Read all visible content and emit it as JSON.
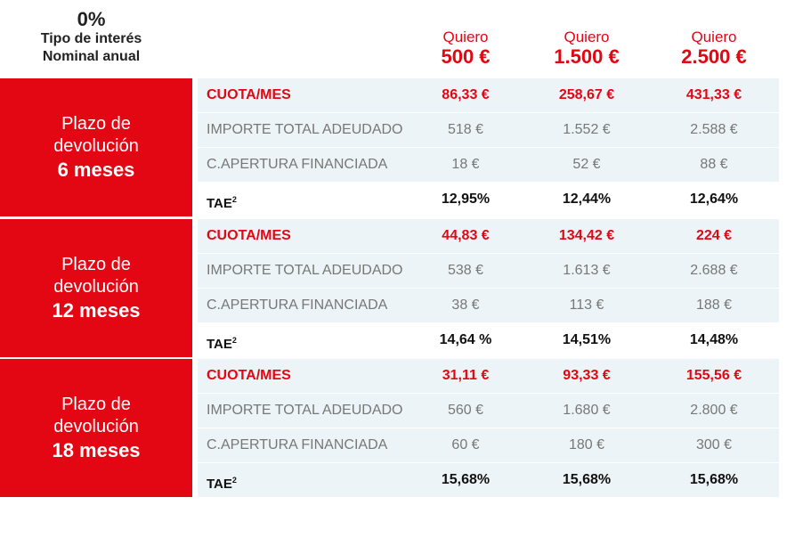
{
  "header": {
    "rate": "0%",
    "rate_label_1": "Tipo de interés",
    "rate_label_2": "Nominal anual",
    "columns": [
      {
        "prefix": "Quiero",
        "amount": "500 €"
      },
      {
        "prefix": "Quiero",
        "amount": "1.500 €"
      },
      {
        "prefix": "Quiero",
        "amount": "2.500 €"
      }
    ]
  },
  "row_labels": {
    "cuota": "CUOTA/MES",
    "importe": "IMPORTE TOTAL ADEUDADO",
    "apertura": "C.APERTURA FINANCIADA",
    "tae": "TAE",
    "tae_sup": "2"
  },
  "blocks": [
    {
      "plazo_1": "Plazo de",
      "plazo_2": "devolución",
      "plazo_3": "6 meses",
      "cuota": [
        "86,33 €",
        "258,67 €",
        "431,33 €"
      ],
      "importe": [
        "518 €",
        "1.552 €",
        "2.588 €"
      ],
      "apertura": [
        "18 €",
        "52 €",
        "88 €"
      ],
      "tae": [
        "12,95%",
        "12,44%",
        "12,64%"
      ]
    },
    {
      "plazo_1": "Plazo de",
      "plazo_2": "devolución",
      "plazo_3": "12 meses",
      "cuota": [
        "44,83 €",
        "134,42 €",
        "224 €"
      ],
      "importe": [
        "538 €",
        "1.613 €",
        "2.688 €"
      ],
      "apertura": [
        "38 €",
        "113 €",
        "188 €"
      ],
      "tae": [
        "14,64 %",
        "14,51%",
        "14,48%"
      ]
    },
    {
      "plazo_1": "Plazo de",
      "plazo_2": "devolución",
      "plazo_3": "18 meses",
      "cuota": [
        "31,11 €",
        "93,33 €",
        "155,56 €"
      ],
      "importe": [
        "560 €",
        "1.680 €",
        "2.800 €"
      ],
      "apertura": [
        "60 €",
        "180 €",
        "300 €"
      ],
      "tae": [
        "15,68%",
        "15,68%",
        "15,68%"
      ]
    }
  ],
  "colors": {
    "accent": "#e30613",
    "row_shade": "#edf4f8"
  }
}
